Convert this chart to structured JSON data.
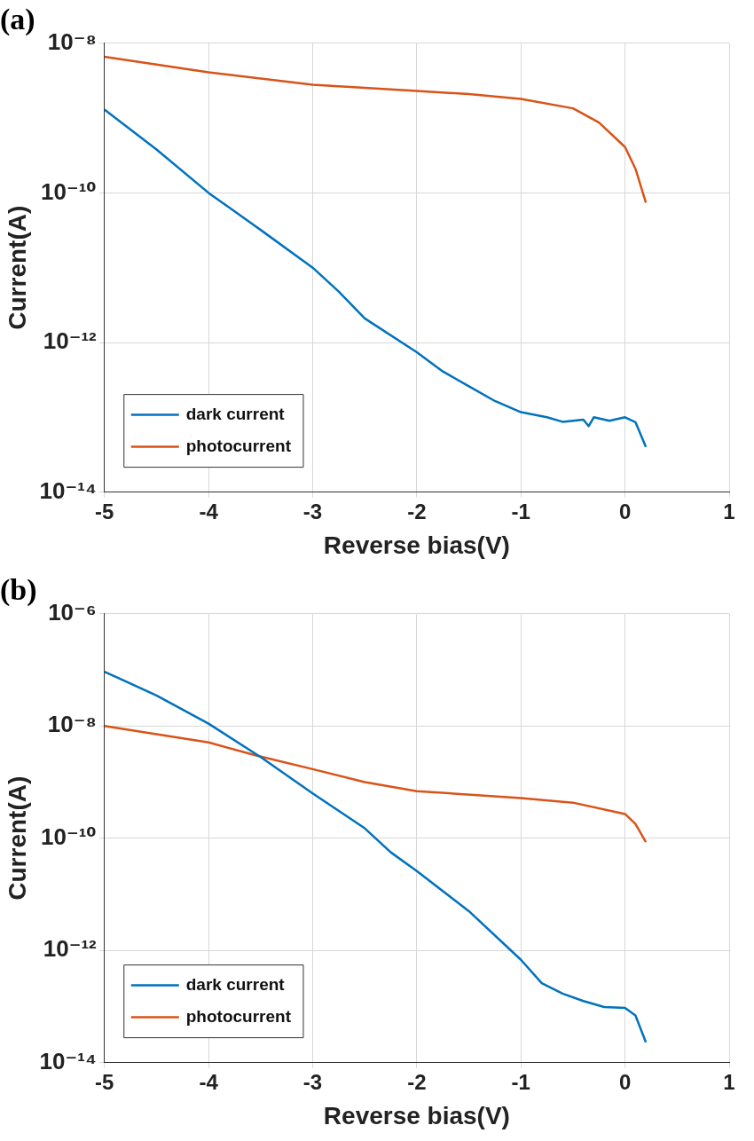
{
  "chart_data": [
    {
      "type": "line",
      "title": "(a)",
      "xlabel": "Reverse bias(V)",
      "ylabel": "Current(A)",
      "log": "y",
      "grid": true,
      "legend": "bottom left",
      "marker": "none",
      "line_style": "solid",
      "xlim": [
        -5,
        1
      ],
      "xticks": [
        -5,
        -4,
        -3,
        -2,
        -1,
        0,
        1
      ],
      "ylim": [
        1e-14,
        1e-08
      ],
      "yticks": [
        {
          "value": 1e-14,
          "label": "10⁻¹⁴"
        },
        {
          "value": 1e-12,
          "label": "10⁻¹²"
        },
        {
          "value": 1e-10,
          "label": "10⁻¹⁰"
        },
        {
          "value": 1e-08,
          "label": "10⁻⁸"
        }
      ],
      "series": [
        {
          "name": "dark current",
          "color": "#0072bd",
          "x": [
            -5,
            -4.5,
            -4,
            -3.5,
            -3,
            -2.75,
            -2.5,
            -2,
            -1.75,
            -1.5,
            -1.25,
            -1,
            -0.75,
            -0.6,
            -0.4,
            -0.35,
            -0.3,
            -0.15,
            0,
            0.1,
            0.2
          ],
          "values": [
            1.3e-09,
            3.8e-10,
            1e-10,
            3.2e-11,
            1e-11,
            4.8e-12,
            2.1e-12,
            7.4e-13,
            4.1e-13,
            2.6e-13,
            1.65e-13,
            1.17e-13,
            1e-13,
            8.7e-14,
            9.3e-14,
            7.6e-14,
            1e-13,
            9e-14,
            1e-13,
            8.6e-14,
            4e-14
          ]
        },
        {
          "name": "photocurrent",
          "color": "#d95319",
          "x": [
            -5,
            -4,
            -3,
            -2,
            -1.5,
            -1,
            -0.5,
            -0.25,
            0,
            0.1,
            0.2
          ],
          "values": [
            6.6e-09,
            4.1e-09,
            2.8e-09,
            2.3e-09,
            2.1e-09,
            1.8e-09,
            1.35e-09,
            8.7e-10,
            4.1e-10,
            2.1e-10,
            7.4e-11
          ]
        }
      ]
    },
    {
      "type": "line",
      "title": "(b)",
      "xlabel": "Reverse bias(V)",
      "ylabel": "Current(A)",
      "log": "y",
      "grid": true,
      "legend": "bottom left",
      "marker": "none",
      "line_style": "solid",
      "xlim": [
        -5,
        1
      ],
      "xticks": [
        -5,
        -4,
        -3,
        -2,
        -1,
        0,
        1
      ],
      "ylim": [
        1e-14,
        1e-06
      ],
      "yticks": [
        {
          "value": 1e-14,
          "label": "10⁻¹⁴"
        },
        {
          "value": 1e-12,
          "label": "10⁻¹²"
        },
        {
          "value": 1e-10,
          "label": "10⁻¹⁰"
        },
        {
          "value": 1e-08,
          "label": "10⁻⁸"
        },
        {
          "value": 1e-06,
          "label": "10⁻⁶"
        }
      ],
      "series": [
        {
          "name": "dark current",
          "color": "#0072bd",
          "x": [
            -5,
            -4.5,
            -4,
            -3.5,
            -3,
            -2.5,
            -2.25,
            -2,
            -1.5,
            -1,
            -0.8,
            -0.6,
            -0.4,
            -0.2,
            0,
            0.1,
            0.2
          ],
          "values": [
            9.3e-08,
            3.5e-08,
            1.1e-08,
            2.8e-09,
            6.3e-10,
            1.5e-10,
            5.6e-11,
            2.6e-11,
            5e-12,
            6.8e-13,
            2.6e-13,
            1.7e-13,
            1.25e-13,
            9.8e-14,
            9.4e-14,
            6.9e-14,
            2.3e-14
          ]
        },
        {
          "name": "photocurrent",
          "color": "#d95319",
          "x": [
            -5,
            -4,
            -3.55,
            -3,
            -2.5,
            -2,
            -1,
            -0.5,
            0,
            0.1,
            0.2
          ],
          "values": [
            1e-08,
            5.1e-09,
            3e-09,
            1.7e-09,
            1e-09,
            6.9e-10,
            5.2e-10,
            4.3e-10,
            2.7e-10,
            1.8e-10,
            8.5e-11
          ]
        }
      ]
    }
  ]
}
